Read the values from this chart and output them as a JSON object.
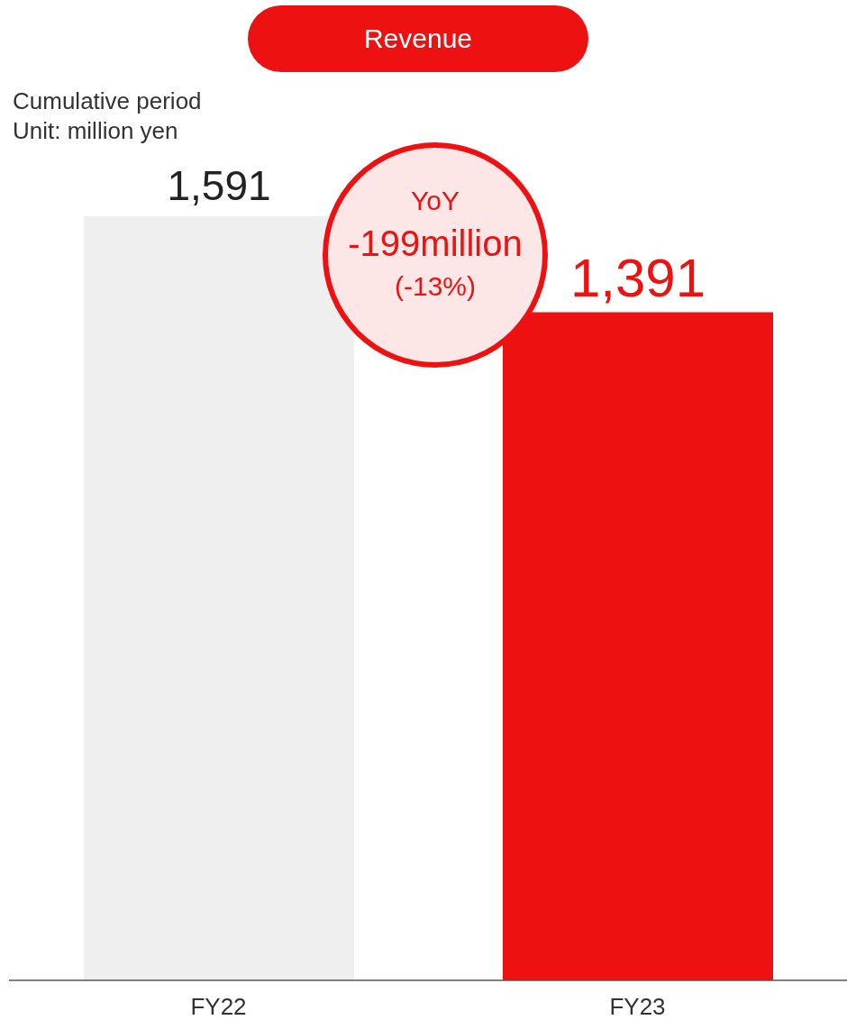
{
  "chart_data": {
    "type": "bar",
    "title": "Revenue",
    "subtitle": "Cumulative period",
    "annotations": [
      "Unit: million yen",
      "YoY",
      "-199million",
      "(-13%)"
    ],
    "categories": [
      "FY22",
      "FY23"
    ],
    "values": [
      1591,
      1391
    ],
    "colors": [
      "#efefef",
      "#ee1111"
    ],
    "value_labels": [
      "1,591",
      "1,391"
    ],
    "legend": false,
    "grid": false
  }
}
